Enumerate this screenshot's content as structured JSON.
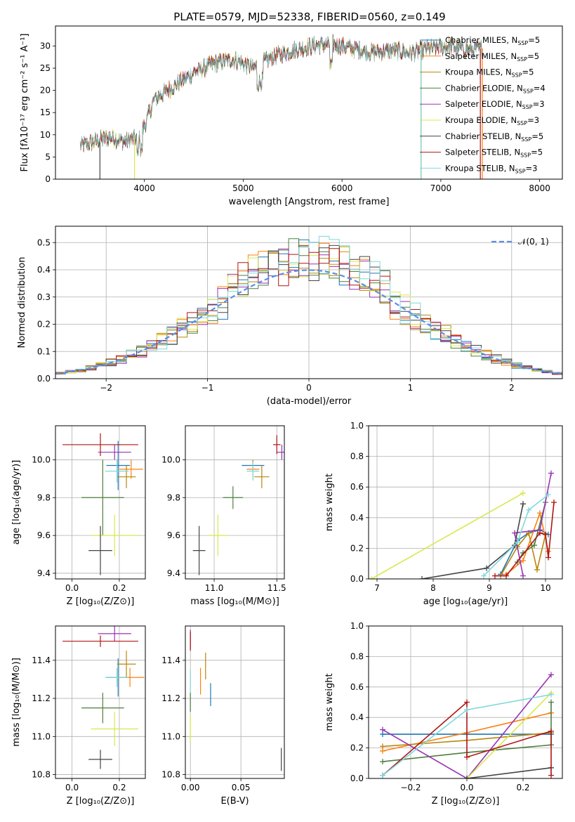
{
  "figure": {
    "title": "PLATE=0579, MJD=52338, FIBERID=0560, z=0.149"
  },
  "colors": {
    "Chabrier MILES": "#1f77b4",
    "Salpeter MILES": "#ff7f0e",
    "Kroupa MILES": "#b8860b",
    "Chabrier ELODIE": "#4f7f3f",
    "Salpeter ELODIE": "#9a33b3",
    "Kroupa ELODIE": "#d9e84a",
    "Chabrier STELIB": "#444444",
    "Salpeter STELIB": "#b01515",
    "Kroupa STELIB": "#7fd8dc",
    "gauss": "#5b8ee6"
  },
  "chart_data": [
    {
      "id": "spectrum",
      "type": "line",
      "title": "PLATE=0579, MJD=52338, FIBERID=0560, z=0.149",
      "xlabel": "wavelength [Angstrom, rest frame]",
      "ylabel": "Flux [fλ10⁻¹⁷ erg cm⁻² s⁻¹ A⁻¹]",
      "xlim": [
        3100,
        8230
      ],
      "ylim": [
        0,
        34.5
      ],
      "xticks": [
        "4000",
        "5000",
        "6000",
        "7000",
        "8000"
      ],
      "yticks": [
        "0",
        "5",
        "10",
        "15",
        "20",
        "25",
        "30"
      ],
      "grid": false,
      "legend_position": "upper right",
      "continuum": {
        "x": [
          3350,
          3500,
          3650,
          3800,
          3950,
          4000,
          4100,
          4300,
          4500,
          4700,
          4900,
          5100,
          5300,
          5500,
          5700,
          5900,
          6100,
          6300,
          6500,
          6700,
          6900,
          7100,
          7300,
          7420
        ],
        "y": [
          7.5,
          8.5,
          9.5,
          8.5,
          9.5,
          12,
          18,
          21,
          24,
          26,
          27,
          25,
          27.5,
          29,
          30,
          30.5,
          29.5,
          28.5,
          29,
          28.5,
          29.5,
          30,
          29,
          29.5
        ]
      },
      "series": [
        {
          "name": "Chabrier MILES, N$_{SSP}$=5",
          "drop_x": null
        },
        {
          "name": "Salpeter MILES, N$_{SSP}$=5",
          "drop_x": 7420
        },
        {
          "name": "Kroupa MILES, N$_{SSP}$=5",
          "drop_x": 6800
        },
        {
          "name": "Chabrier ELODIE, N$_{SSP}$=4",
          "drop_x": null
        },
        {
          "name": "Salpeter ELODIE, N$_{SSP}$=3",
          "drop_x": null
        },
        {
          "name": "Kroupa ELODIE, N$_{SSP}$=3",
          "drop_x": 3900
        },
        {
          "name": "Chabrier STELIB, N$_{SSP}$=5",
          "drop_x": 3550
        },
        {
          "name": "Salpeter STELIB, N$_{SSP}$=5",
          "drop_x": 7400
        },
        {
          "name": "Kroupa STELIB, N$_{SSP}$=3",
          "drop_x": 6800
        }
      ]
    },
    {
      "id": "residuals",
      "type": "area",
      "xlabel": "(data-model)/error",
      "ylabel": "Normed distribution",
      "xlim": [
        -2.5,
        2.5
      ],
      "ylim": [
        0,
        0.56
      ],
      "xticks": [
        "−2",
        "−1",
        "0",
        "1",
        "2"
      ],
      "yticks": [
        "0.0",
        "0.1",
        "0.2",
        "0.3",
        "0.4",
        "0.5"
      ],
      "grid": true,
      "legend": [
        "𝒩(0, 1)"
      ],
      "legend_position": "upper right",
      "bin_width": 0.1,
      "gaussian": {
        "mean": 0,
        "sigma": 1
      }
    },
    {
      "id": "z-age",
      "type": "scatter",
      "xlabel": "Z [log₁₀(Z/Z⊙)]",
      "ylabel": "age  [log₁₀(age/yr)]",
      "xlim": [
        -0.07,
        0.31
      ],
      "ylim": [
        9.37,
        10.18
      ],
      "xticks": [
        "0.0",
        "0.2"
      ],
      "yticks": [
        "9.4",
        "9.6",
        "9.8",
        "10.0"
      ],
      "grid": true,
      "points": [
        {
          "model": "Chabrier MILES",
          "x": 0.195,
          "xerr": 0.05,
          "y": 9.97,
          "yerr": 0.13
        },
        {
          "model": "Salpeter MILES",
          "x": 0.25,
          "xerr": 0.05,
          "y": 9.95,
          "yerr": 0.05
        },
        {
          "model": "Kroupa MILES",
          "x": 0.23,
          "xerr": 0.04,
          "y": 9.91,
          "yerr": 0.06
        },
        {
          "model": "Chabrier ELODIE",
          "x": 0.13,
          "xerr": 0.09,
          "y": 9.8,
          "yerr": 0.2
        },
        {
          "model": "Salpeter ELODIE",
          "x": 0.18,
          "xerr": 0.07,
          "y": 10.04,
          "yerr": 0.04
        },
        {
          "model": "Kroupa ELODIE",
          "x": 0.18,
          "xerr": 0.1,
          "y": 9.6,
          "yerr": 0.11
        },
        {
          "model": "Chabrier STELIB",
          "x": 0.12,
          "xerr": 0.05,
          "y": 9.52,
          "yerr": 0.13
        },
        {
          "model": "Salpeter STELIB",
          "x": 0.12,
          "xerr": 0.16,
          "y": 10.08,
          "yerr": 0.06
        },
        {
          "model": "Kroupa STELIB",
          "x": 0.19,
          "xerr": 0.05,
          "y": 9.94,
          "yerr": 0.06
        }
      ]
    },
    {
      "id": "mass-age",
      "type": "scatter",
      "xlabel": "mass [log₁₀(M/M⊙)]",
      "ylabel": "",
      "xlim": [
        10.77,
        11.56
      ],
      "ylim": [
        9.37,
        10.18
      ],
      "xticks": [
        "11.0",
        "11.5"
      ],
      "yticks": [
        "9.4",
        "9.6",
        "9.8",
        "10.0"
      ],
      "grid": true,
      "points": [
        {
          "model": "Chabrier MILES",
          "x": 11.31,
          "xerr": 0.09,
          "y": 9.97,
          "yerr": 0.03
        },
        {
          "model": "Salpeter MILES",
          "x": 11.31,
          "xerr": 0.05,
          "y": 9.95,
          "yerr": 0.05
        },
        {
          "model": "Kroupa MILES",
          "x": 11.38,
          "xerr": 0.06,
          "y": 9.91,
          "yerr": 0.06
        },
        {
          "model": "Chabrier ELODIE",
          "x": 11.15,
          "xerr": 0.08,
          "y": 9.8,
          "yerr": 0.06
        },
        {
          "model": "Salpeter ELODIE",
          "x": 11.54,
          "xerr": 0.04,
          "y": 10.04,
          "yerr": 0.04
        },
        {
          "model": "Kroupa ELODIE",
          "x": 11.03,
          "xerr": 0.08,
          "y": 9.6,
          "yerr": 0.11
        },
        {
          "model": "Chabrier STELIB",
          "x": 10.88,
          "xerr": 0.05,
          "y": 9.52,
          "yerr": 0.13
        },
        {
          "model": "Salpeter STELIB",
          "x": 11.5,
          "xerr": 0.03,
          "y": 10.08,
          "yerr": 0.05
        },
        {
          "model": "Kroupa STELIB",
          "x": 11.31,
          "xerr": 0.05,
          "y": 9.94,
          "yerr": 0.05
        }
      ]
    },
    {
      "id": "weight-age",
      "type": "line",
      "xlabel": "age  [log₁₀(age/yr)]",
      "ylabel": "mass weight",
      "xlim": [
        6.85,
        10.3
      ],
      "ylim": [
        0,
        1.0
      ],
      "xticks": [
        "7",
        "8",
        "9",
        "10"
      ],
      "yticks": [
        "0.0",
        "0.2",
        "0.4",
        "0.6",
        "0.8",
        "1.0"
      ],
      "grid": true,
      "series": [
        {
          "model": "Chabrier MILES",
          "points": [
            [
              9.2,
              0.03
            ],
            [
              9.5,
              0.25
            ],
            [
              9.7,
              0.3
            ],
            [
              9.9,
              0.32
            ],
            [
              10.05,
              0.29
            ]
          ]
        },
        {
          "model": "Salpeter MILES",
          "points": [
            [
              9.3,
              0.03
            ],
            [
              9.6,
              0.12
            ],
            [
              9.9,
              0.43
            ],
            [
              10.05,
              0.18
            ]
          ]
        },
        {
          "model": "Kroupa MILES",
          "points": [
            [
              9.2,
              0.02
            ],
            [
              9.5,
              0.21
            ],
            [
              9.7,
              0.3
            ],
            [
              9.85,
              0.06
            ],
            [
              10.0,
              0.29
            ]
          ]
        },
        {
          "model": "Chabrier ELODIE",
          "points": [
            [
              9.5,
              0.11
            ],
            [
              9.6,
              0.17
            ],
            [
              9.8,
              0.22
            ],
            [
              10.0,
              0.5
            ]
          ]
        },
        {
          "model": "Salpeter ELODIE",
          "points": [
            [
              9.6,
              0.02
            ],
            [
              9.45,
              0.3
            ],
            [
              9.9,
              0.32
            ],
            [
              10.1,
              0.69
            ]
          ]
        },
        {
          "model": "Kroupa ELODIE",
          "points": [
            [
              6.9,
              0.0
            ],
            [
              9.6,
              0.56
            ]
          ]
        },
        {
          "model": "Chabrier STELIB",
          "points": [
            [
              7.8,
              0.0
            ],
            [
              8.95,
              0.07
            ],
            [
              9.45,
              0.22
            ],
            [
              9.6,
              0.49
            ]
          ]
        },
        {
          "model": "Salpeter STELIB",
          "points": [
            [
              9.1,
              0.02
            ],
            [
              9.3,
              0.02
            ],
            [
              9.9,
              0.3
            ],
            [
              10.0,
              0.29
            ],
            [
              10.05,
              0.14
            ],
            [
              10.15,
              0.5
            ]
          ]
        },
        {
          "model": "Kroupa STELIB",
          "points": [
            [
              8.9,
              0.02
            ],
            [
              9.5,
              0.24
            ],
            [
              9.7,
              0.45
            ],
            [
              10.05,
              0.55
            ]
          ]
        }
      ]
    },
    {
      "id": "z-mass",
      "type": "scatter",
      "xlabel": "Z [log₁₀(Z/Z⊙)]",
      "ylabel": "mass [log₁₀(M/M⊙)]",
      "xlim": [
        -0.07,
        0.31
      ],
      "ylim": [
        10.78,
        11.58
      ],
      "xticks": [
        "0.0",
        "0.2"
      ],
      "yticks": [
        "10.8",
        "11.0",
        "11.2",
        "11.4"
      ],
      "grid": true,
      "points": [
        {
          "model": "Chabrier MILES",
          "x": 0.195,
          "xerr": 0.05,
          "y": 11.31,
          "yerr": 0.1
        },
        {
          "model": "Salpeter MILES",
          "x": 0.245,
          "xerr": 0.06,
          "y": 11.31,
          "yerr": 0.05
        },
        {
          "model": "Kroupa MILES",
          "x": 0.23,
          "xerr": 0.04,
          "y": 11.38,
          "yerr": 0.07
        },
        {
          "model": "Chabrier ELODIE",
          "x": 0.13,
          "xerr": 0.09,
          "y": 11.15,
          "yerr": 0.08
        },
        {
          "model": "Salpeter ELODIE",
          "x": 0.18,
          "xerr": 0.07,
          "y": 11.54,
          "yerr": 0.04
        },
        {
          "model": "Kroupa ELODIE",
          "x": 0.18,
          "xerr": 0.1,
          "y": 11.04,
          "yerr": 0.09
        },
        {
          "model": "Chabrier STELIB",
          "x": 0.12,
          "xerr": 0.05,
          "y": 10.88,
          "yerr": 0.05
        },
        {
          "model": "Salpeter STELIB",
          "x": 0.12,
          "xerr": 0.16,
          "y": 11.5,
          "yerr": 0.03
        },
        {
          "model": "Kroupa STELIB",
          "x": 0.19,
          "xerr": 0.05,
          "y": 11.31,
          "yerr": 0.05
        }
      ]
    },
    {
      "id": "ebv-mass",
      "type": "scatter",
      "xlabel": "E(B-V)",
      "ylabel": "",
      "xlim": [
        -0.005,
        0.093
      ],
      "ylim": [
        10.78,
        11.58
      ],
      "xticks": [
        "0.00",
        "0.05"
      ],
      "yticks": [
        "10.8",
        "11.0",
        "11.2",
        "11.4"
      ],
      "grid": true,
      "points": [
        {
          "model": "Chabrier MILES",
          "x": 0.02,
          "y": 11.22,
          "yerr": 0.06
        },
        {
          "model": "Salpeter MILES",
          "x": 0.01,
          "y": 11.29,
          "yerr": 0.07
        },
        {
          "model": "Kroupa MILES",
          "x": 0.015,
          "y": 11.37,
          "yerr": 0.07
        },
        {
          "model": "Chabrier ELODIE",
          "x": 0.0,
          "y": 11.18,
          "yerr": 0.05
        },
        {
          "model": "Salpeter ELODIE",
          "x": 0.0,
          "y": 11.51,
          "yerr": 0.05
        },
        {
          "model": "Kroupa ELODIE",
          "x": 0.0,
          "y": 11.04,
          "yerr": 0.07
        },
        {
          "model": "Chabrier STELIB",
          "x": 0.09,
          "y": 10.88,
          "yerr": 0.06
        },
        {
          "model": "Salpeter STELIB",
          "x": 0.0,
          "y": 11.5,
          "yerr": 0.05
        },
        {
          "model": "Kroupa STELIB",
          "x": 0.0,
          "y": 11.29,
          "yerr": 0.06
        }
      ]
    },
    {
      "id": "weight-z",
      "type": "line",
      "xlabel": "Z [log₁₀(Z/Z⊙)]",
      "ylabel": "mass weight",
      "xlim": [
        -0.35,
        0.34
      ],
      "ylim": [
        0,
        1.0
      ],
      "xticks": [
        "−0.2",
        "0.0",
        "0.2"
      ],
      "yticks": [
        "0.0",
        "0.2",
        "0.4",
        "0.6",
        "0.8",
        "1.0"
      ],
      "grid": true,
      "series": [
        {
          "model": "Chabrier MILES",
          "points": [
            [
              -0.3,
              0.29
            ],
            [
              0.0,
              0.29
            ],
            [
              0.3,
              0.29
            ]
          ]
        },
        {
          "model": "Salpeter MILES",
          "points": [
            [
              -0.3,
              0.18
            ],
            [
              0.0,
              0.3
            ],
            [
              0.3,
              0.43
            ]
          ]
        },
        {
          "model": "Kroupa MILES",
          "points": [
            [
              -0.3,
              0.21
            ],
            [
              0.0,
              0.25
            ],
            [
              0.3,
              0.3
            ]
          ]
        },
        {
          "model": "Chabrier ELODIE",
          "points": [
            [
              -0.3,
              0.11
            ],
            [
              0.0,
              0.17
            ],
            [
              0.3,
              0.22
            ],
            [
              0.3,
              0.5
            ]
          ]
        },
        {
          "model": "Salpeter ELODIE",
          "points": [
            [
              -0.3,
              0.32
            ],
            [
              0.0,
              0.0
            ],
            [
              0.3,
              0.68
            ]
          ]
        },
        {
          "model": "Kroupa ELODIE",
          "points": [
            [
              0.0,
              0.0
            ],
            [
              0.3,
              0.56
            ]
          ]
        },
        {
          "model": "Chabrier STELIB",
          "points": [
            [
              0.0,
              0.0
            ],
            [
              0.3,
              0.07
            ]
          ]
        },
        {
          "model": "Salpeter STELIB",
          "points": [
            [
              -0.3,
              0.02
            ],
            [
              0.0,
              0.5
            ],
            [
              0.0,
              0.14
            ],
            [
              0.3,
              0.31
            ],
            [
              0.3,
              0.02
            ]
          ]
        },
        {
          "model": "Kroupa STELIB",
          "points": [
            [
              -0.3,
              0.02
            ],
            [
              0.0,
              0.45
            ],
            [
              0.3,
              0.55
            ]
          ]
        }
      ]
    }
  ]
}
